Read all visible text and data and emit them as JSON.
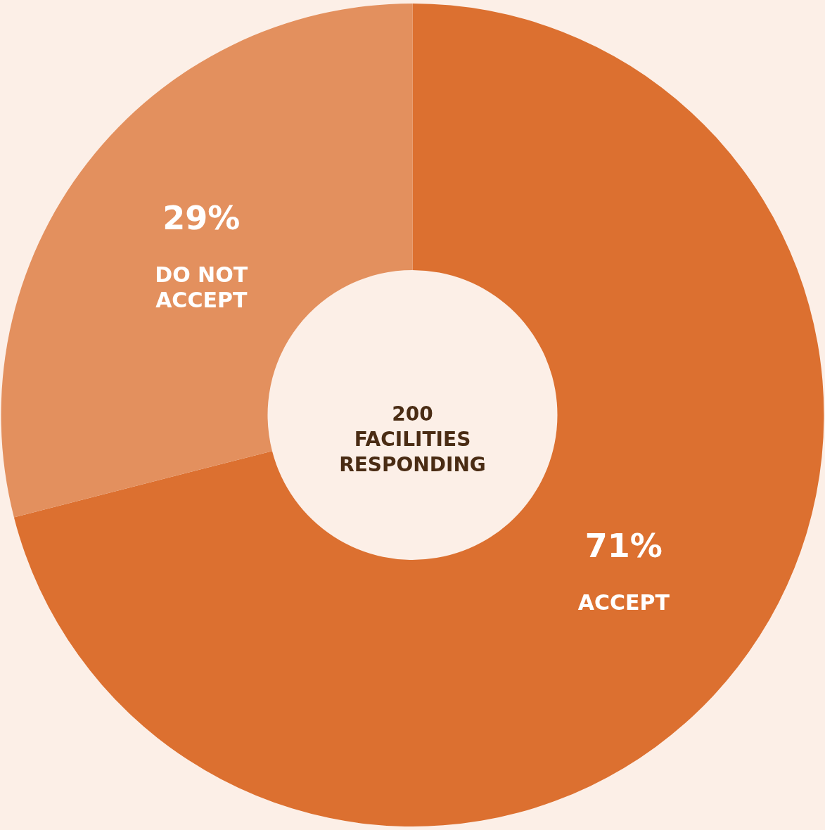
{
  "chart_data": {
    "type": "donut",
    "categories": [
      "ACCEPT",
      "DO NOT ACCEPT"
    ],
    "values": [
      71,
      29
    ],
    "colors": [
      "#dc7030",
      "#e3905e"
    ],
    "value_labels": [
      "71%",
      "29%"
    ],
    "annotations": [
      "200 FACILITIES RESPONDING"
    ]
  }
}
